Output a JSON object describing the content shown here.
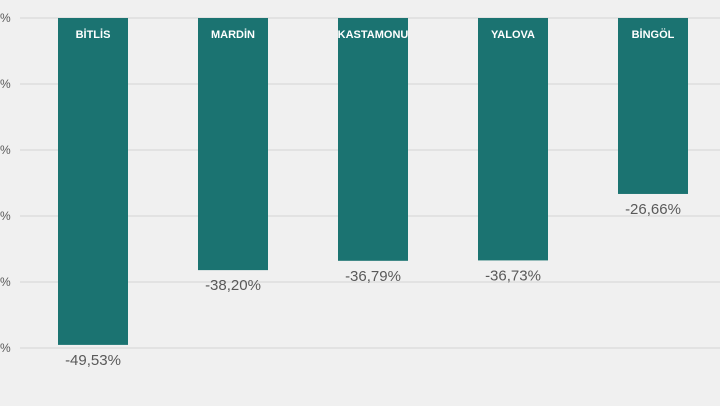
{
  "chart_data": {
    "type": "bar",
    "categories": [
      "BİTLİS",
      "MARDİN",
      "KASTAMONU",
      "YALOVA",
      "BİNGÖL"
    ],
    "values": [
      -49.53,
      -38.2,
      -36.79,
      -36.73,
      -26.66
    ],
    "value_labels": [
      "-49,53%",
      "-38,20%",
      "-36,79%",
      "-36,73%",
      "-26,66%"
    ],
    "ylim": [
      -50,
      0
    ],
    "yticks": [
      0,
      -10,
      -20,
      -30,
      -40,
      -50
    ],
    "ytick_labels": [
      "%",
      "%",
      "%",
      "%",
      "%",
      "%"
    ],
    "grid": true,
    "bar_color": "#1b7371",
    "background": "#f0f0f0",
    "title": "",
    "xlabel": "",
    "ylabel": ""
  }
}
